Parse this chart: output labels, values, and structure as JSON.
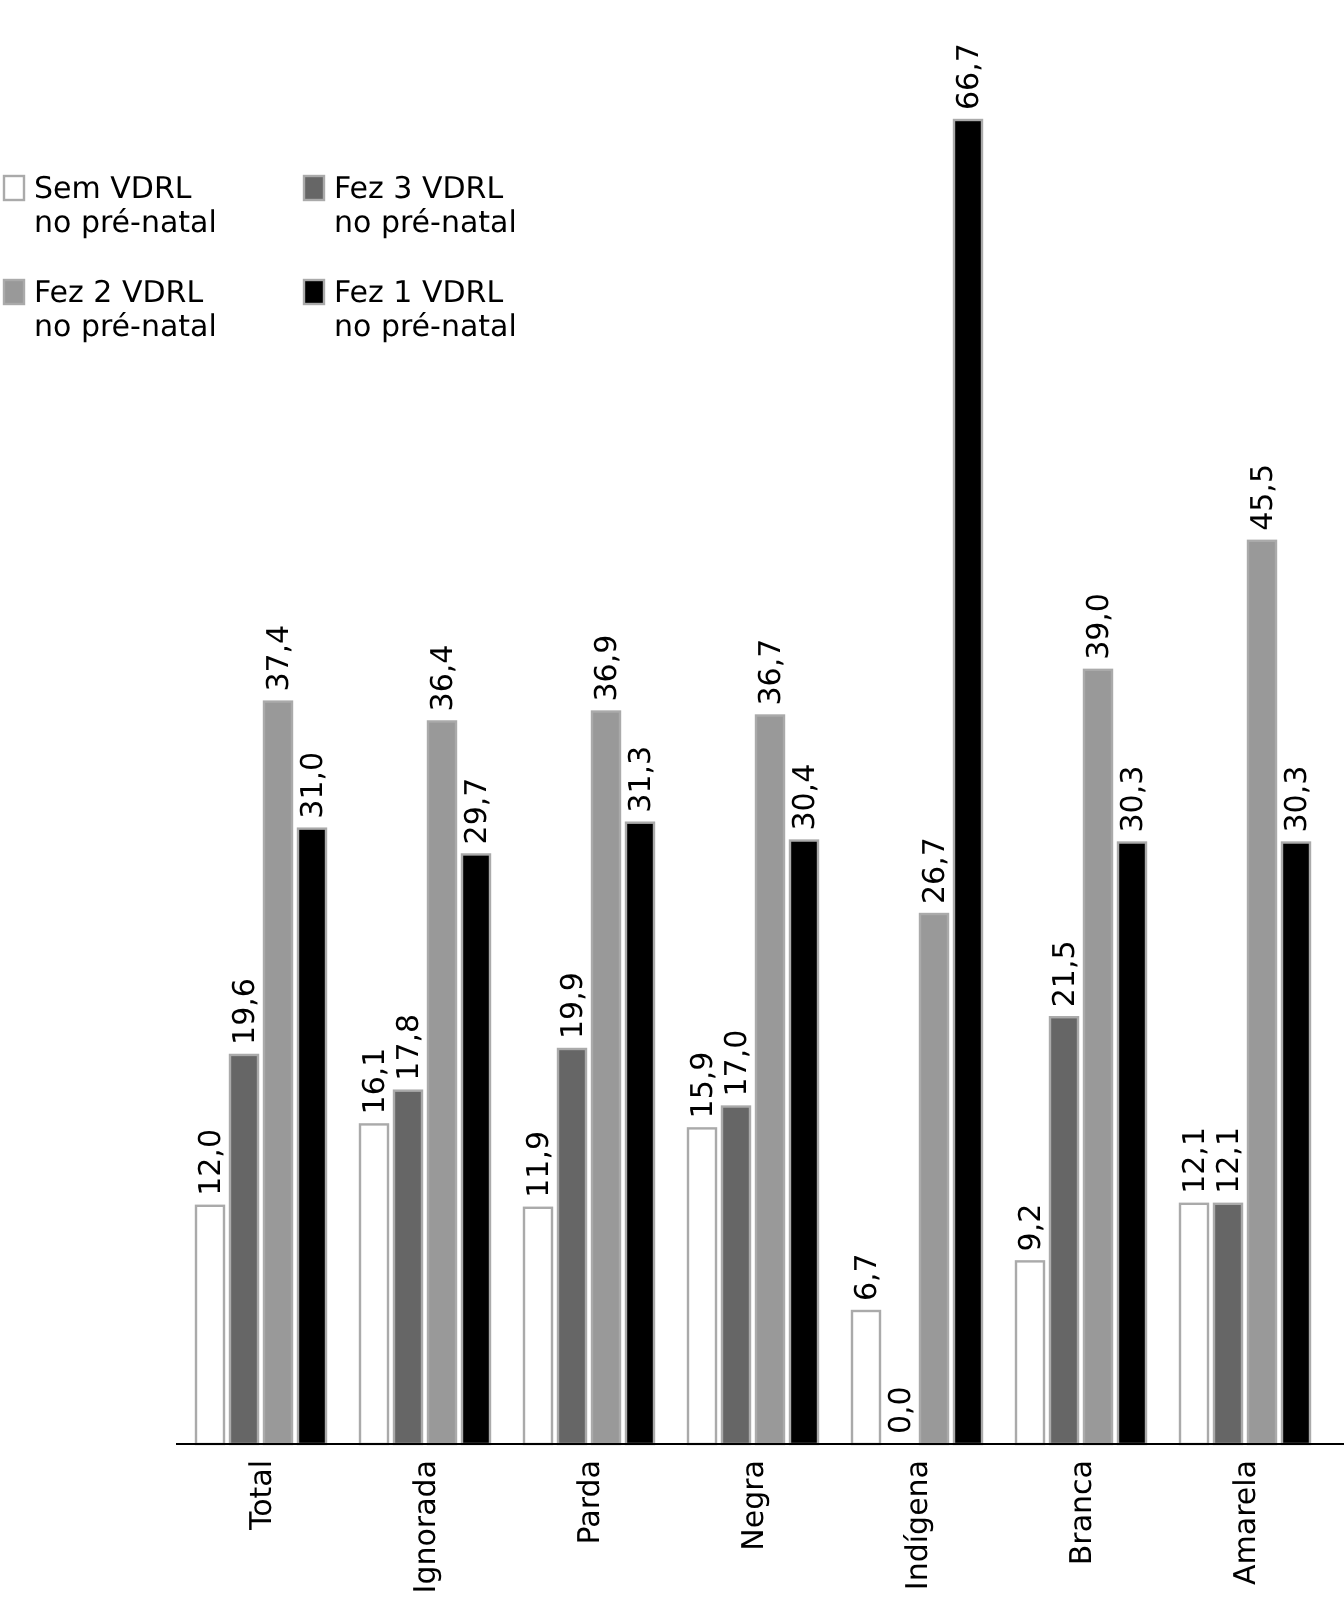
{
  "chart_data": {
    "type": "bar",
    "categories": [
      "Total",
      "Ignorada",
      "Parda",
      "Negra",
      "Indígena",
      "Branca",
      "Amarela"
    ],
    "series": [
      {
        "name": "Sem VDRL no pré-natal",
        "color": "#ffffff",
        "values": [
          12.0,
          16.1,
          11.9,
          15.9,
          6.7,
          9.2,
          12.1
        ],
        "value_labels": [
          "12,0",
          "16,1",
          "11,9",
          "15,9",
          "6,7",
          "9,2",
          "12,1"
        ]
      },
      {
        "name": "Fez 3 VDRL no pré-natal",
        "color": "#666666",
        "values": [
          19.6,
          17.8,
          19.9,
          17.0,
          0.0,
          21.5,
          12.1
        ],
        "value_labels": [
          "19,6",
          "17,8",
          "19,9",
          "17,0",
          "0,0",
          "21,5",
          "12,1"
        ]
      },
      {
        "name": "Fez 2 VDRL no pré-natal",
        "color": "#999999",
        "values": [
          37.4,
          36.4,
          36.9,
          36.7,
          26.7,
          39.0,
          45.5
        ],
        "value_labels": [
          "37,4",
          "36,4",
          "36,9",
          "36,7",
          "26,7",
          "39,0",
          "45,5"
        ]
      },
      {
        "name": "Fez 1 VDRL no pré-natal",
        "color": "#000000",
        "values": [
          31.0,
          29.7,
          31.3,
          30.4,
          66.7,
          30.3,
          30.3
        ],
        "value_labels": [
          "31,0",
          "29,7",
          "31,3",
          "30,4",
          "66,7",
          "30,3",
          "30,3"
        ]
      }
    ],
    "legend": "top left"
  }
}
